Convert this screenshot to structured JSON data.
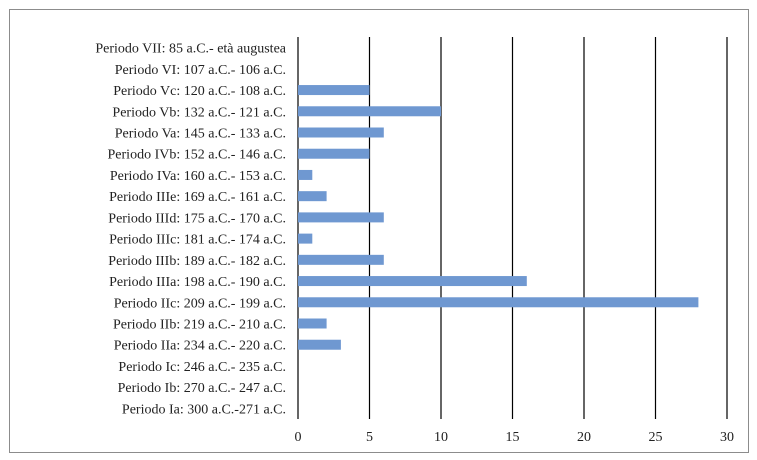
{
  "chart_data": {
    "type": "bar",
    "orientation": "horizontal",
    "title": "",
    "xlabel": "",
    "ylabel": "",
    "categories": [
      "Periodo VII: 85 a.C.- età augustea",
      "Periodo VI: 107 a.C.- 106 a.C.",
      "Periodo Vc: 120 a.C.- 108 a.C.",
      "Periodo Vb: 132 a.C.- 121 a.C.",
      "Periodo Va: 145 a.C.- 133 a.C.",
      "Periodo IVb: 152 a.C.- 146 a.C.",
      "Periodo IVa: 160 a.C.- 153 a.C.",
      "Periodo IIIe: 169 a.C.- 161 a.C.",
      "Periodo IIId: 175 a.C.- 170 a.C.",
      "Periodo IIIc: 181 a.C.- 174 a.C.",
      "Periodo IIIb: 189 a.C.- 182 a.C.",
      "Periodo IIIa: 198 a.C.- 190 a.C.",
      "Periodo IIc: 209 a.C.- 199 a.C.",
      "Periodo IIb: 219 a.C.- 210 a.C.",
      "Periodo IIa: 234 a.C.- 220 a.C.",
      "Periodo Ic: 246 a.C.- 235 a.C.",
      "Periodo Ib: 270 a.C.- 247 a.C.",
      "Periodo Ia: 300 a.C.-271 a.C."
    ],
    "values": [
      0,
      0,
      5,
      10,
      6,
      5,
      1,
      2,
      6,
      1,
      6,
      16,
      28,
      2,
      3,
      0,
      0,
      0
    ],
    "xlim": [
      0,
      30
    ],
    "xticks": [
      0,
      5,
      10,
      15,
      20,
      25,
      30
    ],
    "grid": "vertical",
    "legend": "none",
    "bar_color": "#6f98d1",
    "grid_color": "#000000"
  }
}
